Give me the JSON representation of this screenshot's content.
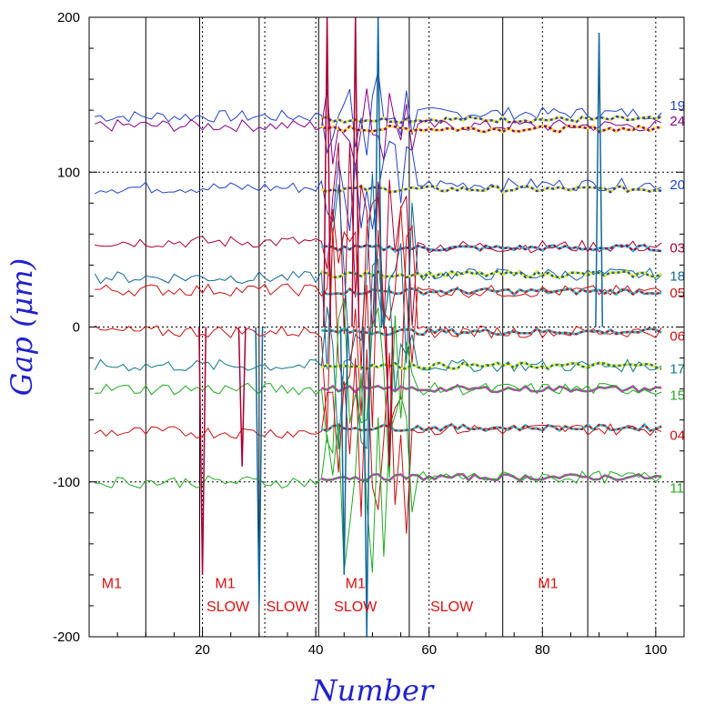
{
  "chart_data": {
    "type": "line",
    "xlabel": "Number",
    "ylabel": "Gap (μm)",
    "xlim": [
      0,
      105
    ],
    "ylim": [
      -200,
      200
    ],
    "x_ticks": [
      20,
      40,
      60,
      80,
      100
    ],
    "y_ticks": [
      -200,
      -100,
      0,
      100,
      200
    ],
    "y_ticklabels": [
      "-200",
      "-100",
      "0",
      "100",
      "200"
    ],
    "hgrid_dotted": [
      100,
      0,
      -100
    ],
    "vlines_solid": [
      10,
      19.5,
      30,
      40.5,
      56.5,
      73,
      88
    ],
    "vlines_dotted": [
      20,
      31,
      40,
      60,
      80,
      100
    ],
    "regions": [
      {
        "label": "M1",
        "x": 4,
        "y": -165
      },
      {
        "label": "M1",
        "x": 24,
        "y": -165
      },
      {
        "label": "SLOW",
        "x": 24.5,
        "y": -180
      },
      {
        "label": "SLOW",
        "x": 35,
        "y": -180
      },
      {
        "label": "M1",
        "x": 47,
        "y": -165
      },
      {
        "label": "SLOW",
        "x": 47,
        "y": -180
      },
      {
        "label": "SLOW",
        "x": 64,
        "y": -180
      },
      {
        "label": "M1",
        "x": 81,
        "y": -165
      }
    ],
    "series": [
      {
        "name": "19",
        "color": "#2244cc",
        "label_y": 143,
        "base": 138,
        "early": 136,
        "fit": 134,
        "fitcolor": "#ffee00"
      },
      {
        "name": "24",
        "color": "#880088",
        "label_y": 133,
        "base": 130,
        "early": 130,
        "fit": 128,
        "fitcolor": "#ffee00"
      },
      {
        "name": "20",
        "color": "#2244cc",
        "label_y": 92,
        "base": 92,
        "early": 90,
        "fit": 89,
        "fitcolor": "#ffee00"
      },
      {
        "name": "03",
        "color": "#aa0033",
        "label_y": 51,
        "base": 52,
        "early": 55,
        "fit": 51,
        "fitcolor": "#00ccee"
      },
      {
        "name": "18",
        "color": "#116699",
        "label_y": 33,
        "base": 34,
        "early": 32,
        "fit": 34,
        "fitcolor": "#ffee00"
      },
      {
        "name": "05",
        "color": "#cc1111",
        "label_y": 22,
        "base": 23,
        "early": 24,
        "fit": 23,
        "fitcolor": "#00ccee"
      },
      {
        "name": "06",
        "color": "#cc1111",
        "label_y": -6,
        "base": -3,
        "early": -3,
        "fit": -3,
        "fitcolor": "#00ccee"
      },
      {
        "name": "17",
        "color": "#117788",
        "label_y": -27,
        "base": -25,
        "early": -25,
        "fit": -25,
        "fitcolor": "#ffee00"
      },
      {
        "name": "15",
        "color": "#22aa22",
        "label_y": -44,
        "base": -40,
        "early": -40,
        "fit": -40,
        "fitcolor": "#ee22ee"
      },
      {
        "name": "04",
        "color": "#cc1111",
        "label_y": -70,
        "base": -66,
        "early": -68,
        "fit": -65,
        "fitcolor": "#00ccee"
      },
      {
        "name": "11",
        "color": "#22aa22",
        "label_y": -104,
        "base": -97,
        "early": -100,
        "fit": -97,
        "fitcolor": "#ee22ee"
      }
    ]
  }
}
